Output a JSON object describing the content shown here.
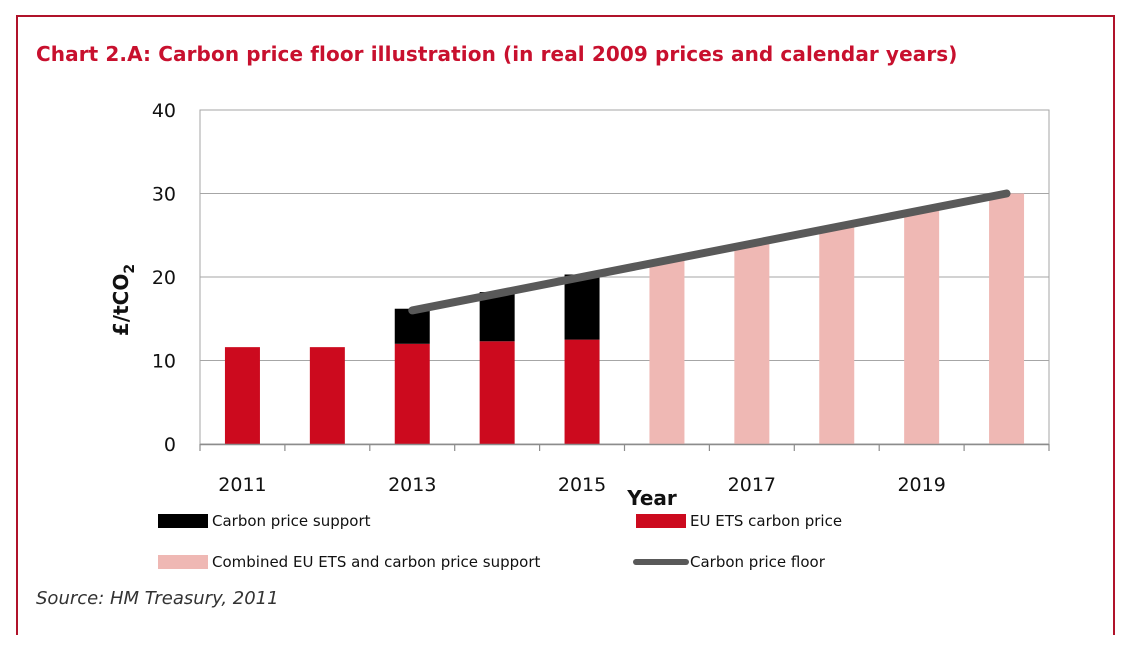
{
  "title": "Chart 2.A: Carbon price floor illustration (in real 2009 prices and calendar years)",
  "source": "Source: HM Treasury, 2011",
  "colors": {
    "frame": "#b0132a",
    "title": "#c8102e",
    "eu_ets": "#cc0a1e",
    "support": "#000000",
    "combined": "#efb8b4",
    "floor": "#595959",
    "grid": "#a6a6a6"
  },
  "chart_data": {
    "type": "bar",
    "stacked": true,
    "xlabel": "Year",
    "ylabel": "£/tCO",
    "ylabel_subscript": "2",
    "ylim": [
      0,
      40
    ],
    "yticks": [
      "0",
      "10",
      "20",
      "30",
      "40"
    ],
    "ytick_values": [
      0,
      10,
      20,
      30,
      40
    ],
    "years": [
      2011,
      2012,
      2013,
      2014,
      2015,
      2016,
      2017,
      2018,
      2019,
      2020
    ],
    "xtick_labels": [
      {
        "label": "2011",
        "year": 2011
      },
      {
        "label": "2013",
        "year": 2013
      },
      {
        "label": "2015",
        "year": 2015
      },
      {
        "label": "2017",
        "year": 2017
      },
      {
        "label": "2019",
        "year": 2019
      }
    ],
    "series": [
      {
        "name": "EU ETS carbon price",
        "key": "eu_ets",
        "values": [
          11.6,
          11.6,
          12.0,
          12.3,
          12.5,
          null,
          null,
          null,
          null,
          null
        ]
      },
      {
        "name": "Carbon price support",
        "key": "support",
        "values": [
          null,
          null,
          4.2,
          5.9,
          7.8,
          null,
          null,
          null,
          null,
          null
        ]
      },
      {
        "name": "Combined EU ETS and carbon price support",
        "key": "combined",
        "values": [
          null,
          null,
          null,
          null,
          null,
          22.0,
          24.0,
          26.0,
          28.0,
          30.0
        ]
      }
    ],
    "line": {
      "name": "Carbon price floor",
      "points": [
        {
          "year": 2013,
          "value": 16.0
        },
        {
          "year": 2020,
          "value": 30.0
        }
      ]
    },
    "legend": [
      {
        "label": "Carbon price support",
        "key": "support",
        "kind": "bar"
      },
      {
        "label": "EU ETS carbon price",
        "key": "eu_ets",
        "kind": "bar"
      },
      {
        "label": "Combined EU ETS and carbon price support",
        "key": "combined",
        "kind": "bar"
      },
      {
        "label": "Carbon price floor",
        "key": "floor",
        "kind": "line"
      }
    ]
  }
}
